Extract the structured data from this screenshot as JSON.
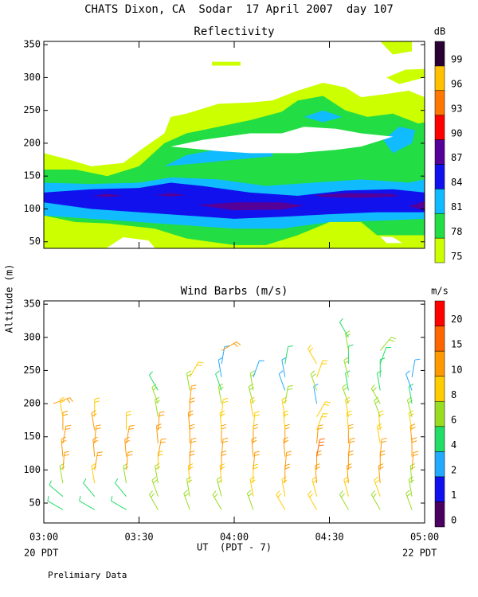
{
  "title": "CHATS Dixon, CA  Sodar  17 April 2007  day 107",
  "y_label": "Altitude (m)",
  "x_label": "UT  (PDT - 7)",
  "x_left_note": "20 PDT",
  "x_right_note": "22 PDT",
  "footer": "Prelimiary Data",
  "chart_data": [
    {
      "type": "contour",
      "title": "Reflectivity",
      "colorbar_label": "dB",
      "levels": [
        75,
        78,
        81,
        84,
        87,
        90,
        93,
        96,
        99
      ],
      "colors": [
        "#ccff00",
        "#22dd44",
        "#11bbff",
        "#1111ee",
        "#550099",
        "#ff0000",
        "#ff7700",
        "#ffc000",
        "#2a0033"
      ],
      "xlim": [
        0,
        120
      ],
      "ylim": [
        40,
        355
      ],
      "xticks": [
        0,
        30,
        60,
        90,
        120
      ],
      "yticks": [
        50,
        100,
        150,
        200,
        250,
        300,
        350
      ]
    },
    {
      "type": "barbs",
      "title": "Wind Barbs (m/s)",
      "colorbar_label": "m/s",
      "levels": [
        0,
        1,
        2,
        4,
        6,
        8,
        10,
        15,
        20
      ],
      "colors": [
        "#4a0060",
        "#1010ee",
        "#22aaff",
        "#22dd66",
        "#99dd22",
        "#ffcc00",
        "#ff9900",
        "#ff6600",
        "#ff0000"
      ],
      "xlim": [
        0,
        120
      ],
      "ylim": [
        20,
        355
      ],
      "xticks": [
        {
          "value": 0,
          "label": "03:00"
        },
        {
          "value": 30,
          "label": "03:30"
        },
        {
          "value": 60,
          "label": "04:00"
        },
        {
          "value": 90,
          "label": "04:30"
        },
        {
          "value": 120,
          "label": "05:00"
        }
      ],
      "yticks": [
        50,
        100,
        150,
        200,
        250,
        300,
        350
      ],
      "barbs": [
        {
          "time": 3,
          "altitude": [
            200
          ],
          "speed": [
            10
          ],
          "direction": [
            70
          ]
        },
        {
          "time": 6,
          "altitude": [
            40,
            60,
            80,
            100,
            120,
            140,
            160,
            180
          ],
          "speed": [
            4,
            4,
            6,
            10,
            10,
            10,
            10,
            8
          ],
          "direction": [
            300,
            310,
            350,
            5,
            355,
            10,
            0,
            350
          ]
        },
        {
          "time": 16,
          "altitude": [
            40,
            60,
            80,
            100,
            120,
            140,
            160,
            180
          ],
          "speed": [
            4,
            4,
            8,
            10,
            10,
            10,
            10,
            8
          ],
          "direction": [
            300,
            320,
            350,
            10,
            355,
            5,
            350,
            0
          ]
        },
        {
          "time": 26,
          "altitude": [
            40,
            60,
            80,
            100,
            120,
            140,
            160
          ],
          "speed": [
            4,
            4,
            6,
            10,
            10,
            10,
            8
          ],
          "direction": [
            300,
            320,
            350,
            5,
            355,
            10,
            0
          ]
        },
        {
          "time": 36,
          "altitude": [
            40,
            60,
            80,
            100,
            120,
            140,
            160,
            180,
            200,
            220
          ],
          "speed": [
            6,
            6,
            6,
            8,
            10,
            10,
            10,
            6,
            6,
            4
          ],
          "direction": [
            330,
            340,
            350,
            0,
            10,
            355,
            5,
            350,
            340,
            330
          ]
        },
        {
          "time": 46,
          "altitude": [
            40,
            60,
            80,
            100,
            120,
            140,
            160,
            180,
            200,
            220,
            240
          ],
          "speed": [
            6,
            6,
            8,
            10,
            10,
            10,
            10,
            10,
            10,
            6,
            8
          ],
          "direction": [
            340,
            350,
            355,
            0,
            5,
            0,
            355,
            0,
            5,
            350,
            30
          ]
        },
        {
          "time": 56,
          "altitude": [
            40,
            60,
            80,
            100,
            120,
            140,
            160,
            180,
            200,
            220,
            240,
            260,
            280
          ],
          "speed": [
            6,
            6,
            8,
            10,
            10,
            10,
            8,
            8,
            6,
            4,
            2,
            2,
            10
          ],
          "direction": [
            330,
            345,
            355,
            0,
            5,
            0,
            355,
            5,
            350,
            340,
            350,
            10,
            60
          ]
        },
        {
          "time": 66,
          "altitude": [
            40,
            60,
            80,
            100,
            120,
            140,
            160,
            180,
            200,
            220,
            240
          ],
          "speed": [
            6,
            8,
            8,
            10,
            10,
            10,
            8,
            8,
            6,
            6,
            2
          ],
          "direction": [
            340,
            350,
            0,
            5,
            355,
            0,
            5,
            350,
            345,
            350,
            20
          ]
        },
        {
          "time": 76,
          "altitude": [
            40,
            60,
            80,
            100,
            120,
            140,
            160,
            180,
            200,
            220,
            240,
            260
          ],
          "speed": [
            8,
            8,
            10,
            10,
            10,
            10,
            8,
            8,
            6,
            2,
            2,
            4
          ],
          "direction": [
            330,
            350,
            0,
            5,
            355,
            0,
            355,
            350,
            10,
            340,
            350,
            10
          ]
        },
        {
          "time": 86,
          "altitude": [
            40,
            60,
            80,
            100,
            120,
            140,
            160,
            180,
            200,
            220,
            240,
            260
          ],
          "speed": [
            8,
            8,
            10,
            10,
            15,
            10,
            8,
            8,
            2,
            6,
            8,
            8
          ],
          "direction": [
            330,
            345,
            355,
            0,
            10,
            5,
            20,
            30,
            350,
            340,
            20,
            330
          ]
        },
        {
          "time": 96,
          "altitude": [
            40,
            60,
            80,
            100,
            120,
            140,
            160,
            180,
            200,
            220,
            240,
            260,
            280,
            300
          ],
          "speed": [
            6,
            8,
            10,
            10,
            10,
            10,
            8,
            8,
            6,
            4,
            6,
            4,
            6,
            4
          ],
          "direction": [
            330,
            345,
            355,
            0,
            5,
            0,
            355,
            350,
            340,
            350,
            345,
            0,
            350,
            330
          ]
        },
        {
          "time": 106,
          "altitude": [
            40,
            60,
            80,
            100,
            120,
            140,
            160,
            180,
            200,
            220,
            240,
            260,
            280
          ],
          "speed": [
            6,
            8,
            10,
            10,
            10,
            8,
            8,
            6,
            6,
            4,
            4,
            4,
            6
          ],
          "direction": [
            330,
            340,
            355,
            0,
            5,
            350,
            355,
            340,
            330,
            350,
            0,
            20,
            40
          ]
        },
        {
          "time": 116,
          "altitude": [
            40,
            60,
            80,
            100,
            120,
            140,
            160,
            180,
            200,
            220,
            240
          ],
          "speed": [
            6,
            6,
            6,
            10,
            10,
            10,
            8,
            6,
            4,
            2,
            2
          ],
          "direction": [
            340,
            350,
            355,
            5,
            0,
            355,
            350,
            345,
            350,
            340,
            10
          ]
        }
      ]
    }
  ]
}
